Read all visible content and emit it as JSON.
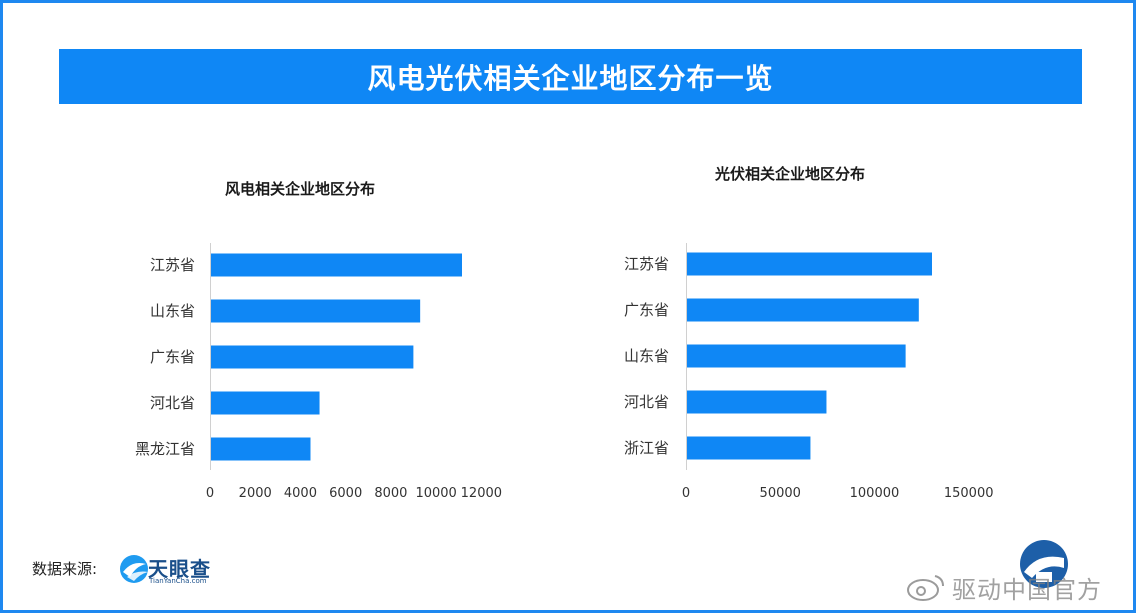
{
  "header": {
    "title": "风电光伏相关企业地区分布一览"
  },
  "footer": {
    "source_label": "数据来源:",
    "brand_name": "天眼查",
    "brand_sub": "TianYanCha.com",
    "watermark": "驱动中国官方"
  },
  "colors": {
    "bar": "#0f87f5",
    "banner": "#0f87f5",
    "border": "#1e88f0"
  },
  "chart_data": [
    {
      "type": "bar",
      "orientation": "horizontal",
      "title": "风电相关企业地区分布",
      "categories": [
        "江苏省",
        "山东省",
        "广东省",
        "河北省",
        "黑龙江省"
      ],
      "values": [
        11100,
        9250,
        8950,
        4800,
        4400
      ],
      "xlim": [
        0,
        12000
      ],
      "ticks": [
        0,
        2000,
        4000,
        6000,
        8000,
        10000,
        12000
      ],
      "grid": false
    },
    {
      "type": "bar",
      "orientation": "horizontal",
      "title": "光伏相关企业地区分布",
      "categories": [
        "江苏省",
        "广东省",
        "山东省",
        "河北省",
        "浙江省"
      ],
      "values": [
        130000,
        123000,
        116000,
        74000,
        65500
      ],
      "xlim": [
        0,
        150000
      ],
      "ticks": [
        0,
        50000,
        100000,
        150000
      ],
      "grid": false
    }
  ]
}
